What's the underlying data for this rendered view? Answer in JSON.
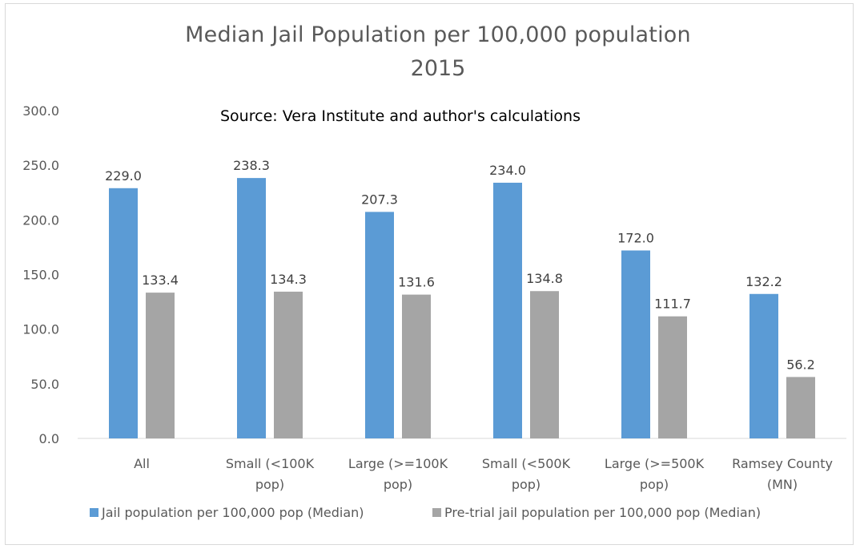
{
  "chart_data": {
    "type": "bar",
    "title_lines": [
      "Median Jail Population per 100,000 population",
      "2015"
    ],
    "subtitle": "Source:  Vera Institute and author's calculations",
    "categories": [
      [
        "All"
      ],
      [
        "Small (<100K",
        "pop)"
      ],
      [
        "Large (>=100K",
        "pop)"
      ],
      [
        "Small (<500K",
        "pop)"
      ],
      [
        "Large (>=500K",
        "pop)"
      ],
      [
        "Ramsey County",
        "(MN)"
      ]
    ],
    "series": [
      {
        "name": "Jail population per 100,000 pop (Median)",
        "color": "#5b9bd5",
        "values": [
          229.0,
          238.3,
          207.3,
          234.0,
          172.0,
          132.2
        ],
        "labels": [
          "229.0",
          "238.3",
          "207.3",
          "234.0",
          "172.0",
          "132.2"
        ]
      },
      {
        "name": "Pre-trial jail population per 100,000 pop (Median)",
        "color": "#a5a5a5",
        "values": [
          133.4,
          134.3,
          131.6,
          134.8,
          111.7,
          56.2
        ],
        "labels": [
          "133.4",
          "134.3",
          "131.6",
          "134.8",
          "111.7",
          "56.2"
        ]
      }
    ],
    "y_ticks": [
      "0.0",
      "50.0",
      "100.0",
      "150.0",
      "200.0",
      "250.0",
      "300.0"
    ],
    "ylim": [
      0,
      300
    ],
    "grid": false,
    "legend_position": "bottom"
  }
}
